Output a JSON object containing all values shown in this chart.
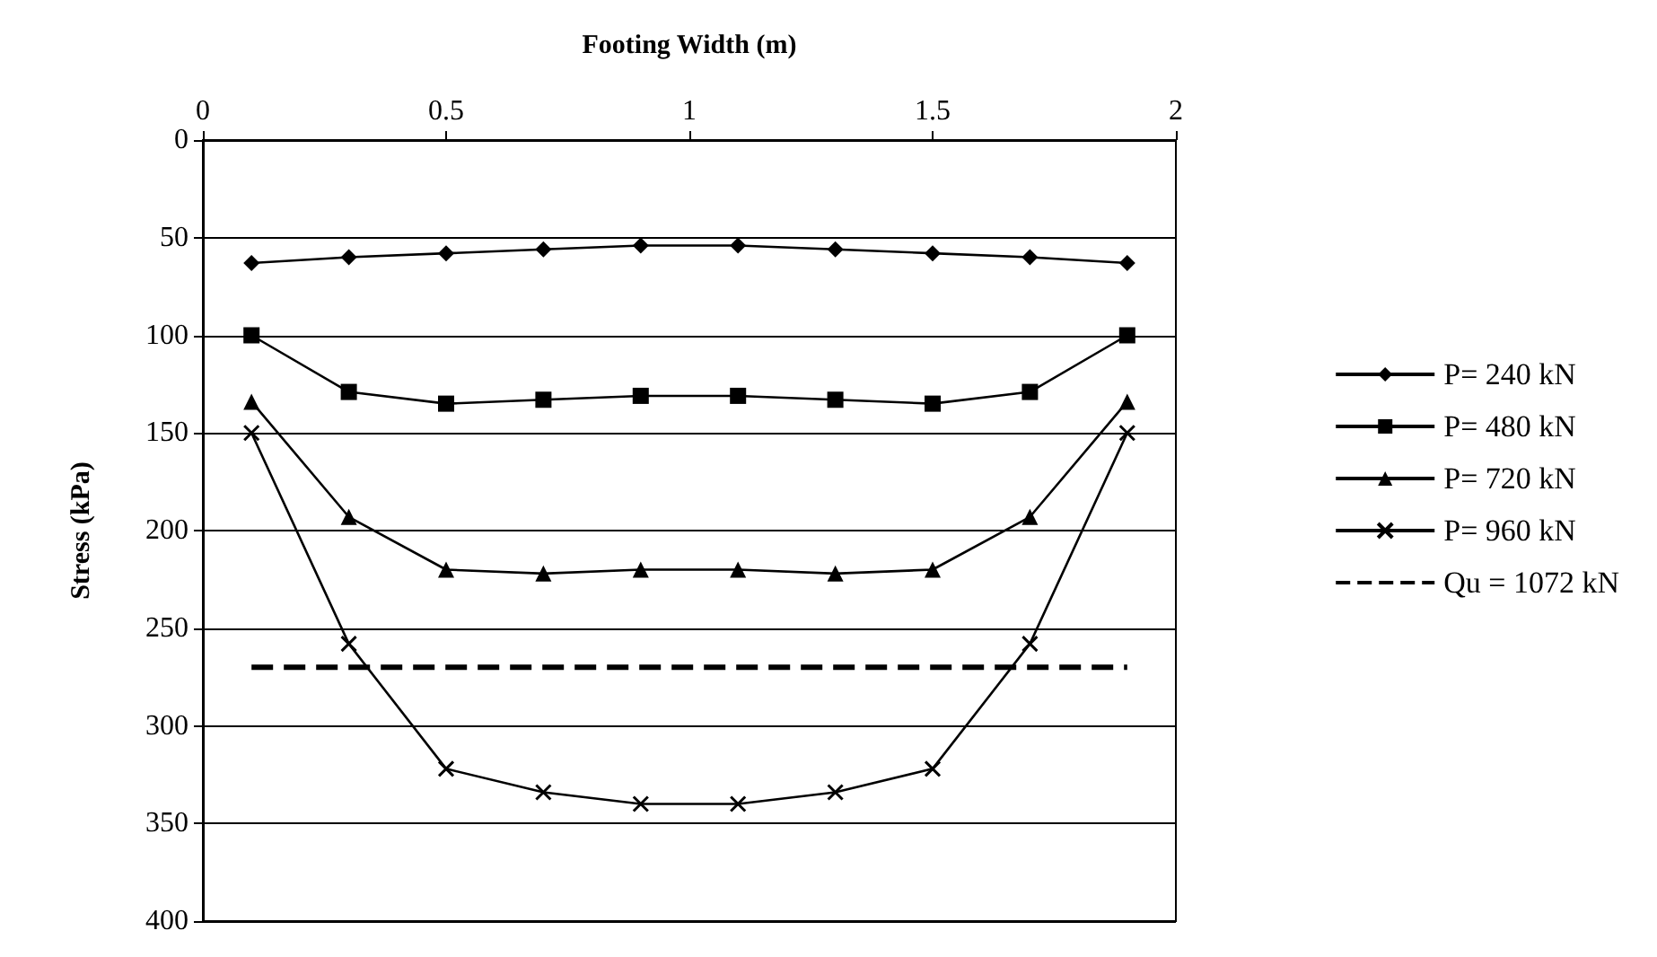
{
  "chart_data": {
    "type": "line",
    "xlabel": "Footing Width (m)",
    "ylabel": "Stress (kPa)",
    "xlim": [
      0,
      2
    ],
    "xticks": [
      0,
      0.5,
      1,
      1.5,
      2
    ],
    "ylim": [
      400,
      0
    ],
    "yticks": [
      0,
      50,
      100,
      150,
      200,
      250,
      300,
      350,
      400
    ],
    "grid": "y",
    "legend": "right",
    "series": [
      {
        "name": "P= 240 kN",
        "color": "#000000",
        "marker": "diamond",
        "line_style": "solid",
        "x": [
          0.1,
          0.3,
          0.5,
          0.7,
          0.9,
          1.1,
          1.3,
          1.5,
          1.7,
          1.9
        ],
        "values": [
          63,
          60,
          58,
          56,
          54,
          54,
          56,
          58,
          60,
          63
        ]
      },
      {
        "name": "P= 480 kN",
        "color": "#000000",
        "marker": "square",
        "line_style": "solid",
        "x": [
          0.1,
          0.3,
          0.5,
          0.7,
          0.9,
          1.1,
          1.3,
          1.5,
          1.7,
          1.9
        ],
        "values": [
          100,
          129,
          135,
          133,
          131,
          131,
          133,
          135,
          129,
          100
        ]
      },
      {
        "name": "P= 720 kN",
        "color": "#000000",
        "marker": "triangle",
        "line_style": "solid",
        "x": [
          0.1,
          0.3,
          0.5,
          0.7,
          0.9,
          1.1,
          1.3,
          1.5,
          1.7,
          1.9
        ],
        "values": [
          134,
          193,
          220,
          222,
          220,
          220,
          222,
          220,
          193,
          134
        ]
      },
      {
        "name": "P= 960 kN",
        "color": "#000000",
        "marker": "cross",
        "line_style": "solid",
        "x": [
          0.1,
          0.3,
          0.5,
          0.7,
          0.9,
          1.1,
          1.3,
          1.5,
          1.7,
          1.9
        ],
        "values": [
          150,
          258,
          322,
          334,
          340,
          340,
          334,
          322,
          258,
          150
        ]
      },
      {
        "name": "Qu = 1072 kN",
        "color": "#000000",
        "marker": "none",
        "line_style": "dashed",
        "x": [
          0.1,
          1.9
        ],
        "values": [
          270,
          270
        ]
      }
    ]
  }
}
